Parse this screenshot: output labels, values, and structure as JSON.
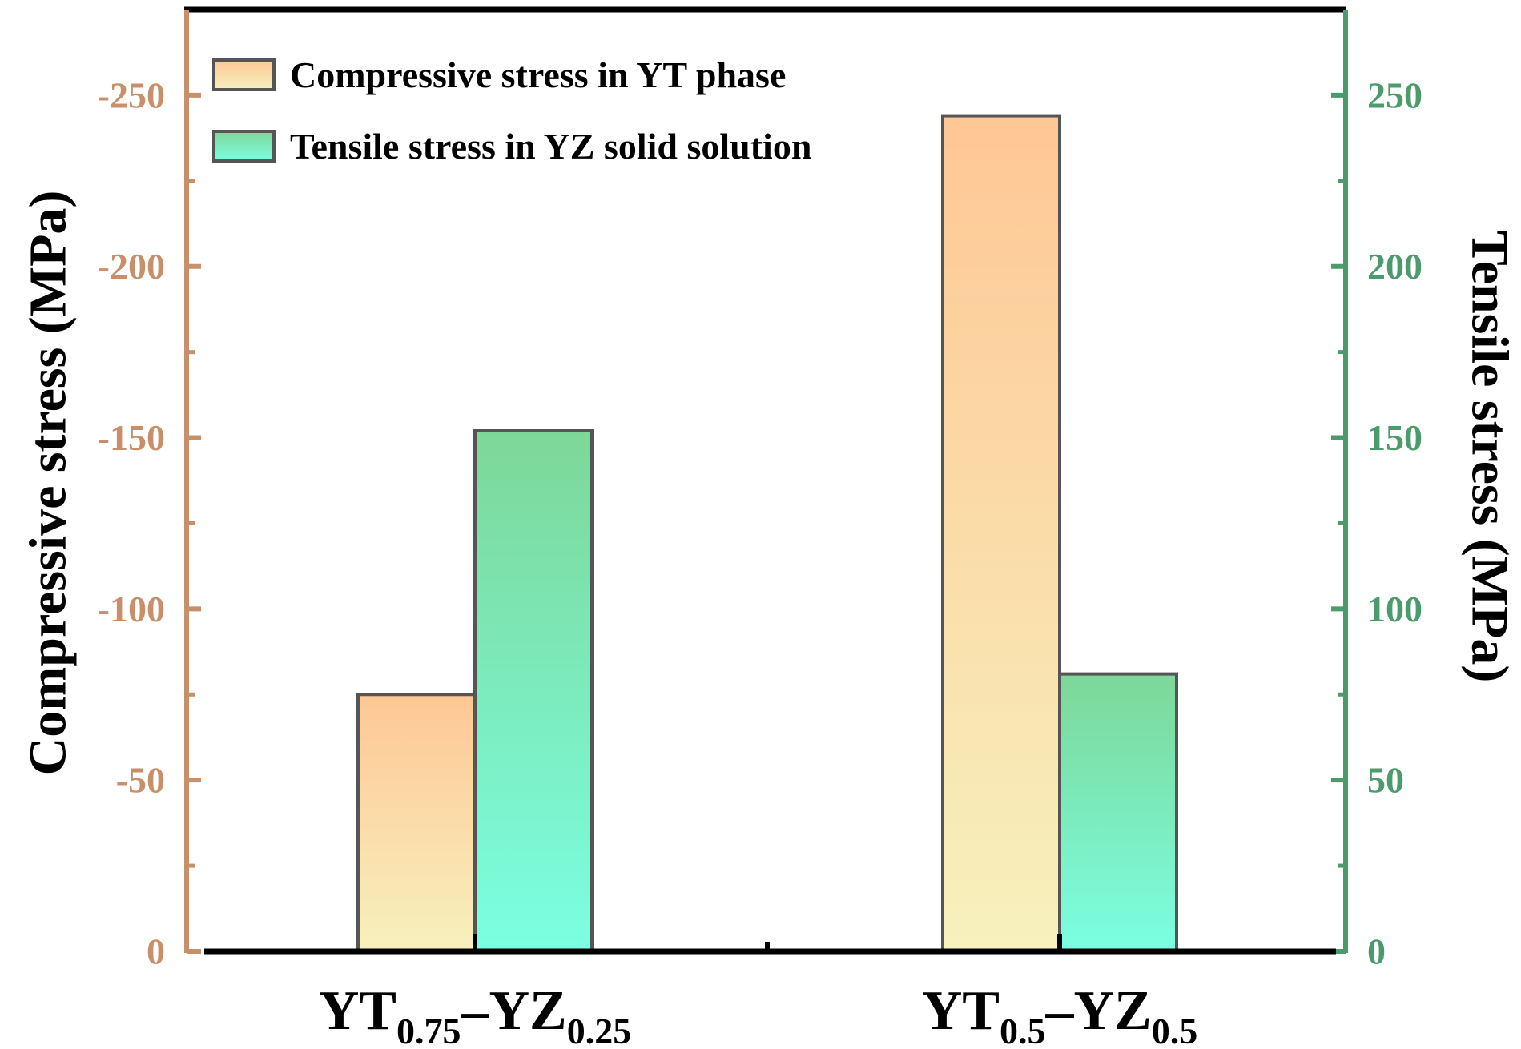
{
  "chart_data": {
    "type": "bar",
    "categories": [
      {
        "main1": "YT",
        "sub1": "0.75",
        "dash": "–",
        "main2": "YZ",
        "sub2": "0.25"
      },
      {
        "main1": "YT",
        "sub1": "0.5",
        "dash": "–",
        "main2": "YZ",
        "sub2": "0.5"
      }
    ],
    "series": [
      {
        "name": "Compressive stress in YT phase",
        "axis": "left",
        "values": [
          -75,
          -244
        ],
        "gradient": {
          "top": "#fec795",
          "bottom": "#f7f1bd"
        }
      },
      {
        "name": "Tensile stress in YZ solid solution",
        "axis": "right",
        "values": [
          152,
          81
        ],
        "gradient": {
          "top": "#7dd798",
          "bottom": "#7bffe2"
        }
      }
    ],
    "left_axis": {
      "label": "Compressive stress (MPa)",
      "ylim": [
        0,
        -275
      ],
      "ticks": [
        0,
        -50,
        -100,
        -150,
        -200,
        -250
      ],
      "tick_labels": [
        "0",
        "-50",
        "-100",
        "-150",
        "-200",
        "-250"
      ],
      "color": "#c8906a"
    },
    "right_axis": {
      "label": "Tensile stress (MPa)",
      "ylim": [
        0,
        275
      ],
      "ticks": [
        0,
        50,
        100,
        150,
        200,
        250
      ],
      "tick_labels": [
        "0",
        "50",
        "100",
        "150",
        "200",
        "250"
      ],
      "color": "#4c9b6c"
    },
    "legend_position": "top-left",
    "grid": false
  }
}
